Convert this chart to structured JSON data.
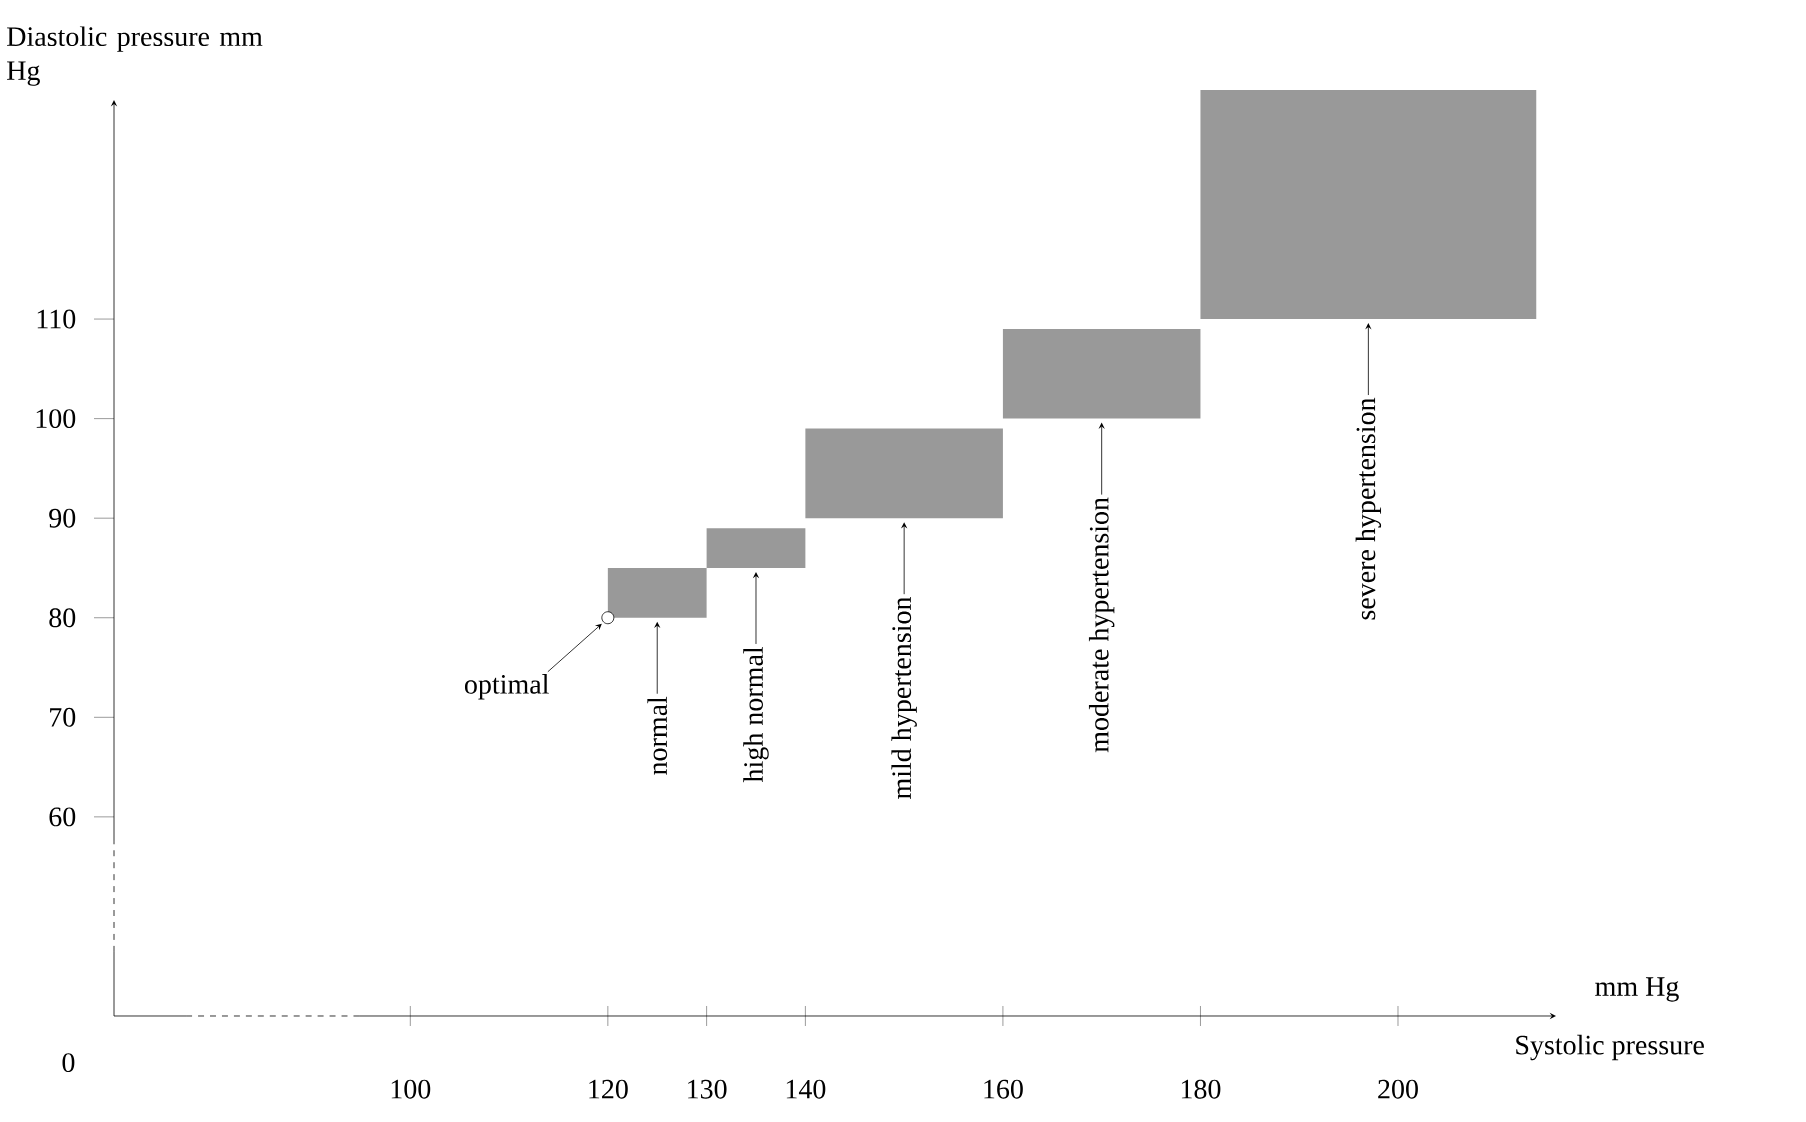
{
  "chart_data": {
    "type": "histogram",
    "xlabel": "Systolic pressure",
    "ylabel": "Diastolic pressure mm Hg",
    "bins": [
      120,
      130,
      140,
      160,
      180,
      214
    ],
    "values": [
      5,
      4,
      9,
      9,
      23
    ],
    "base": [
      80,
      85,
      90,
      100,
      110
    ],
    "color": "#999999",
    "xlim": [
      70,
      216
    ],
    "ylim": [
      40,
      132
    ],
    "xticks": [
      100,
      120,
      130,
      140,
      160,
      180,
      200
    ],
    "yticks": [
      60,
      70,
      80,
      90,
      100,
      110
    ],
    "grid": false,
    "annotations": [
      "0",
      "mm Hg",
      {
        "text": "optimal",
        "x": 120,
        "y": 80
      },
      {
        "text": "normal",
        "x": 125,
        "y": 80
      },
      {
        "text": "high normal",
        "x": 135,
        "y": 85
      },
      {
        "text": "mild hypertension",
        "x": 150,
        "y": 90
      },
      {
        "text": "moderate hypertension",
        "x": 170,
        "y": 100
      },
      {
        "text": "severe hypertension",
        "x": 197,
        "y": 110
      }
    ]
  }
}
